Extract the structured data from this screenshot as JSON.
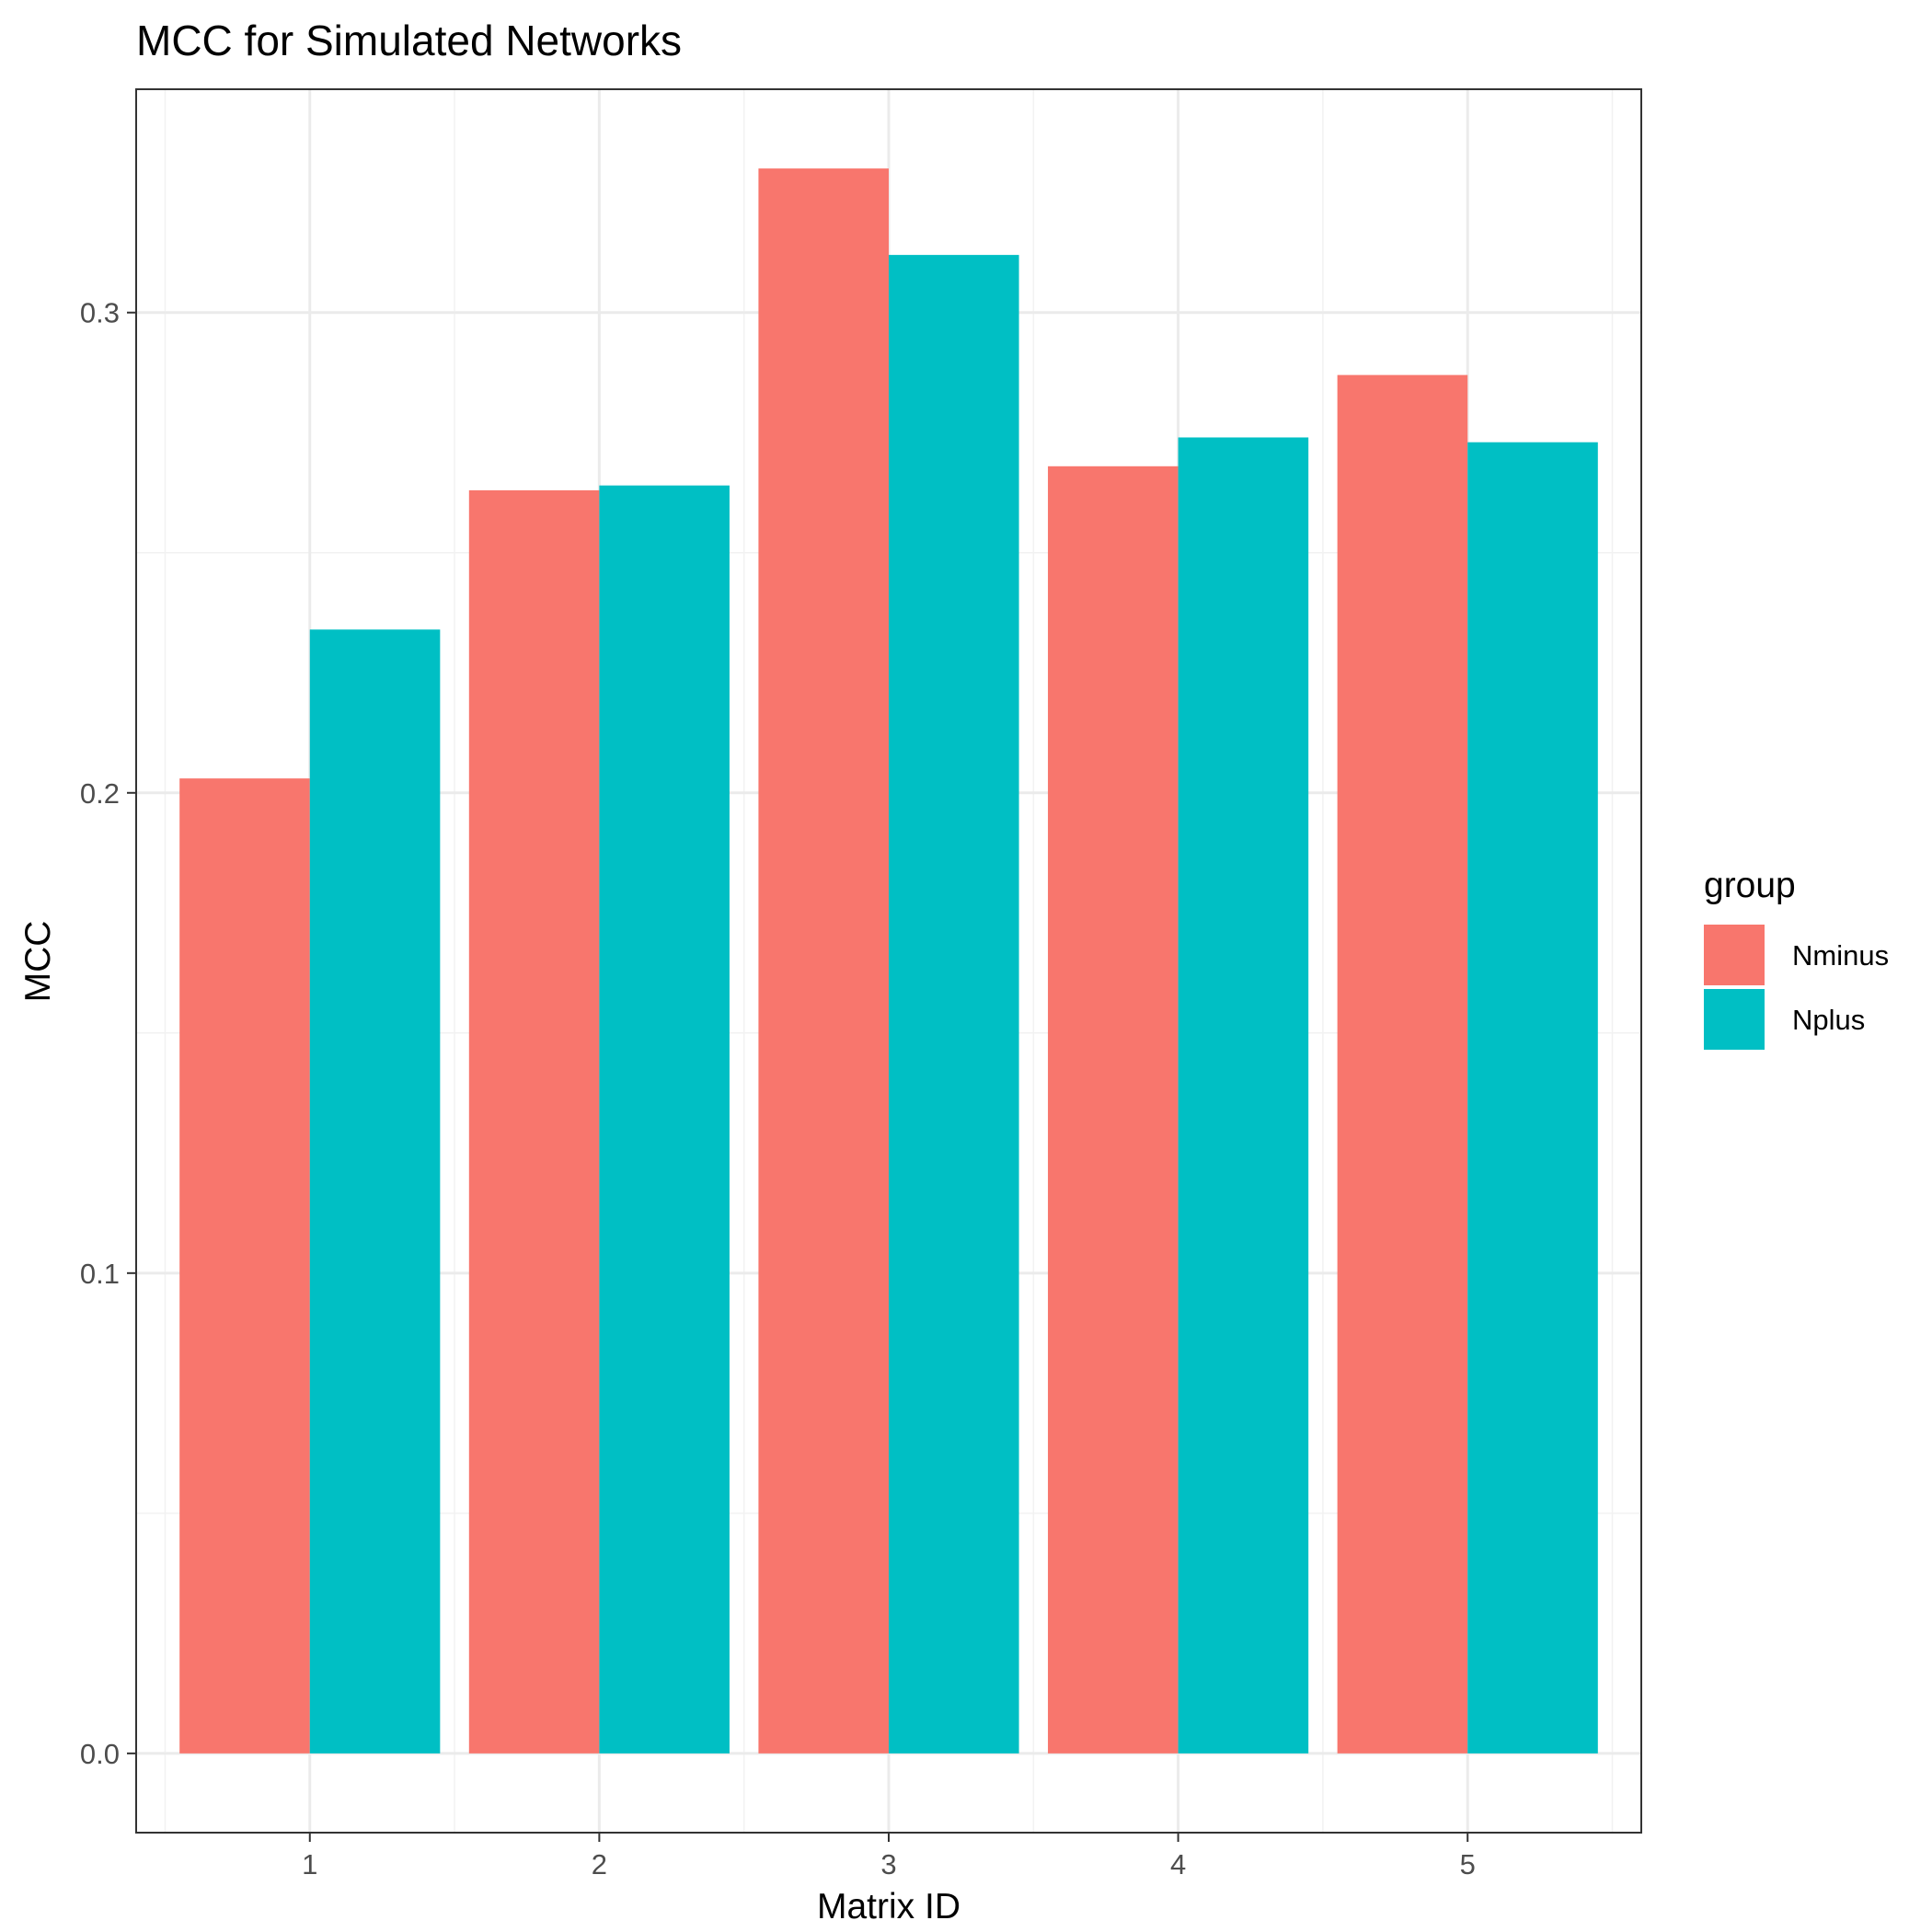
{
  "chart_data": {
    "type": "bar",
    "title": "MCC for Simulated Networks",
    "xlabel": "Matrix ID",
    "ylabel": "MCC",
    "categories": [
      "1",
      "2",
      "3",
      "4",
      "5"
    ],
    "series": [
      {
        "name": "Nminus",
        "color": "#F8766D",
        "values": [
          0.203,
          0.263,
          0.33,
          0.268,
          0.287
        ]
      },
      {
        "name": "Nplus",
        "color": "#00BFC4",
        "values": [
          0.234,
          0.264,
          0.312,
          0.274,
          0.273
        ]
      }
    ],
    "ylim": [
      -0.0165,
      0.3465
    ],
    "y_ticks": [
      0.0,
      0.1,
      0.2,
      0.3
    ],
    "y_tick_labels": [
      "0.0",
      "0.1",
      "0.2",
      "0.3"
    ],
    "legend": {
      "title": "group",
      "position": "right"
    },
    "grid": true
  }
}
